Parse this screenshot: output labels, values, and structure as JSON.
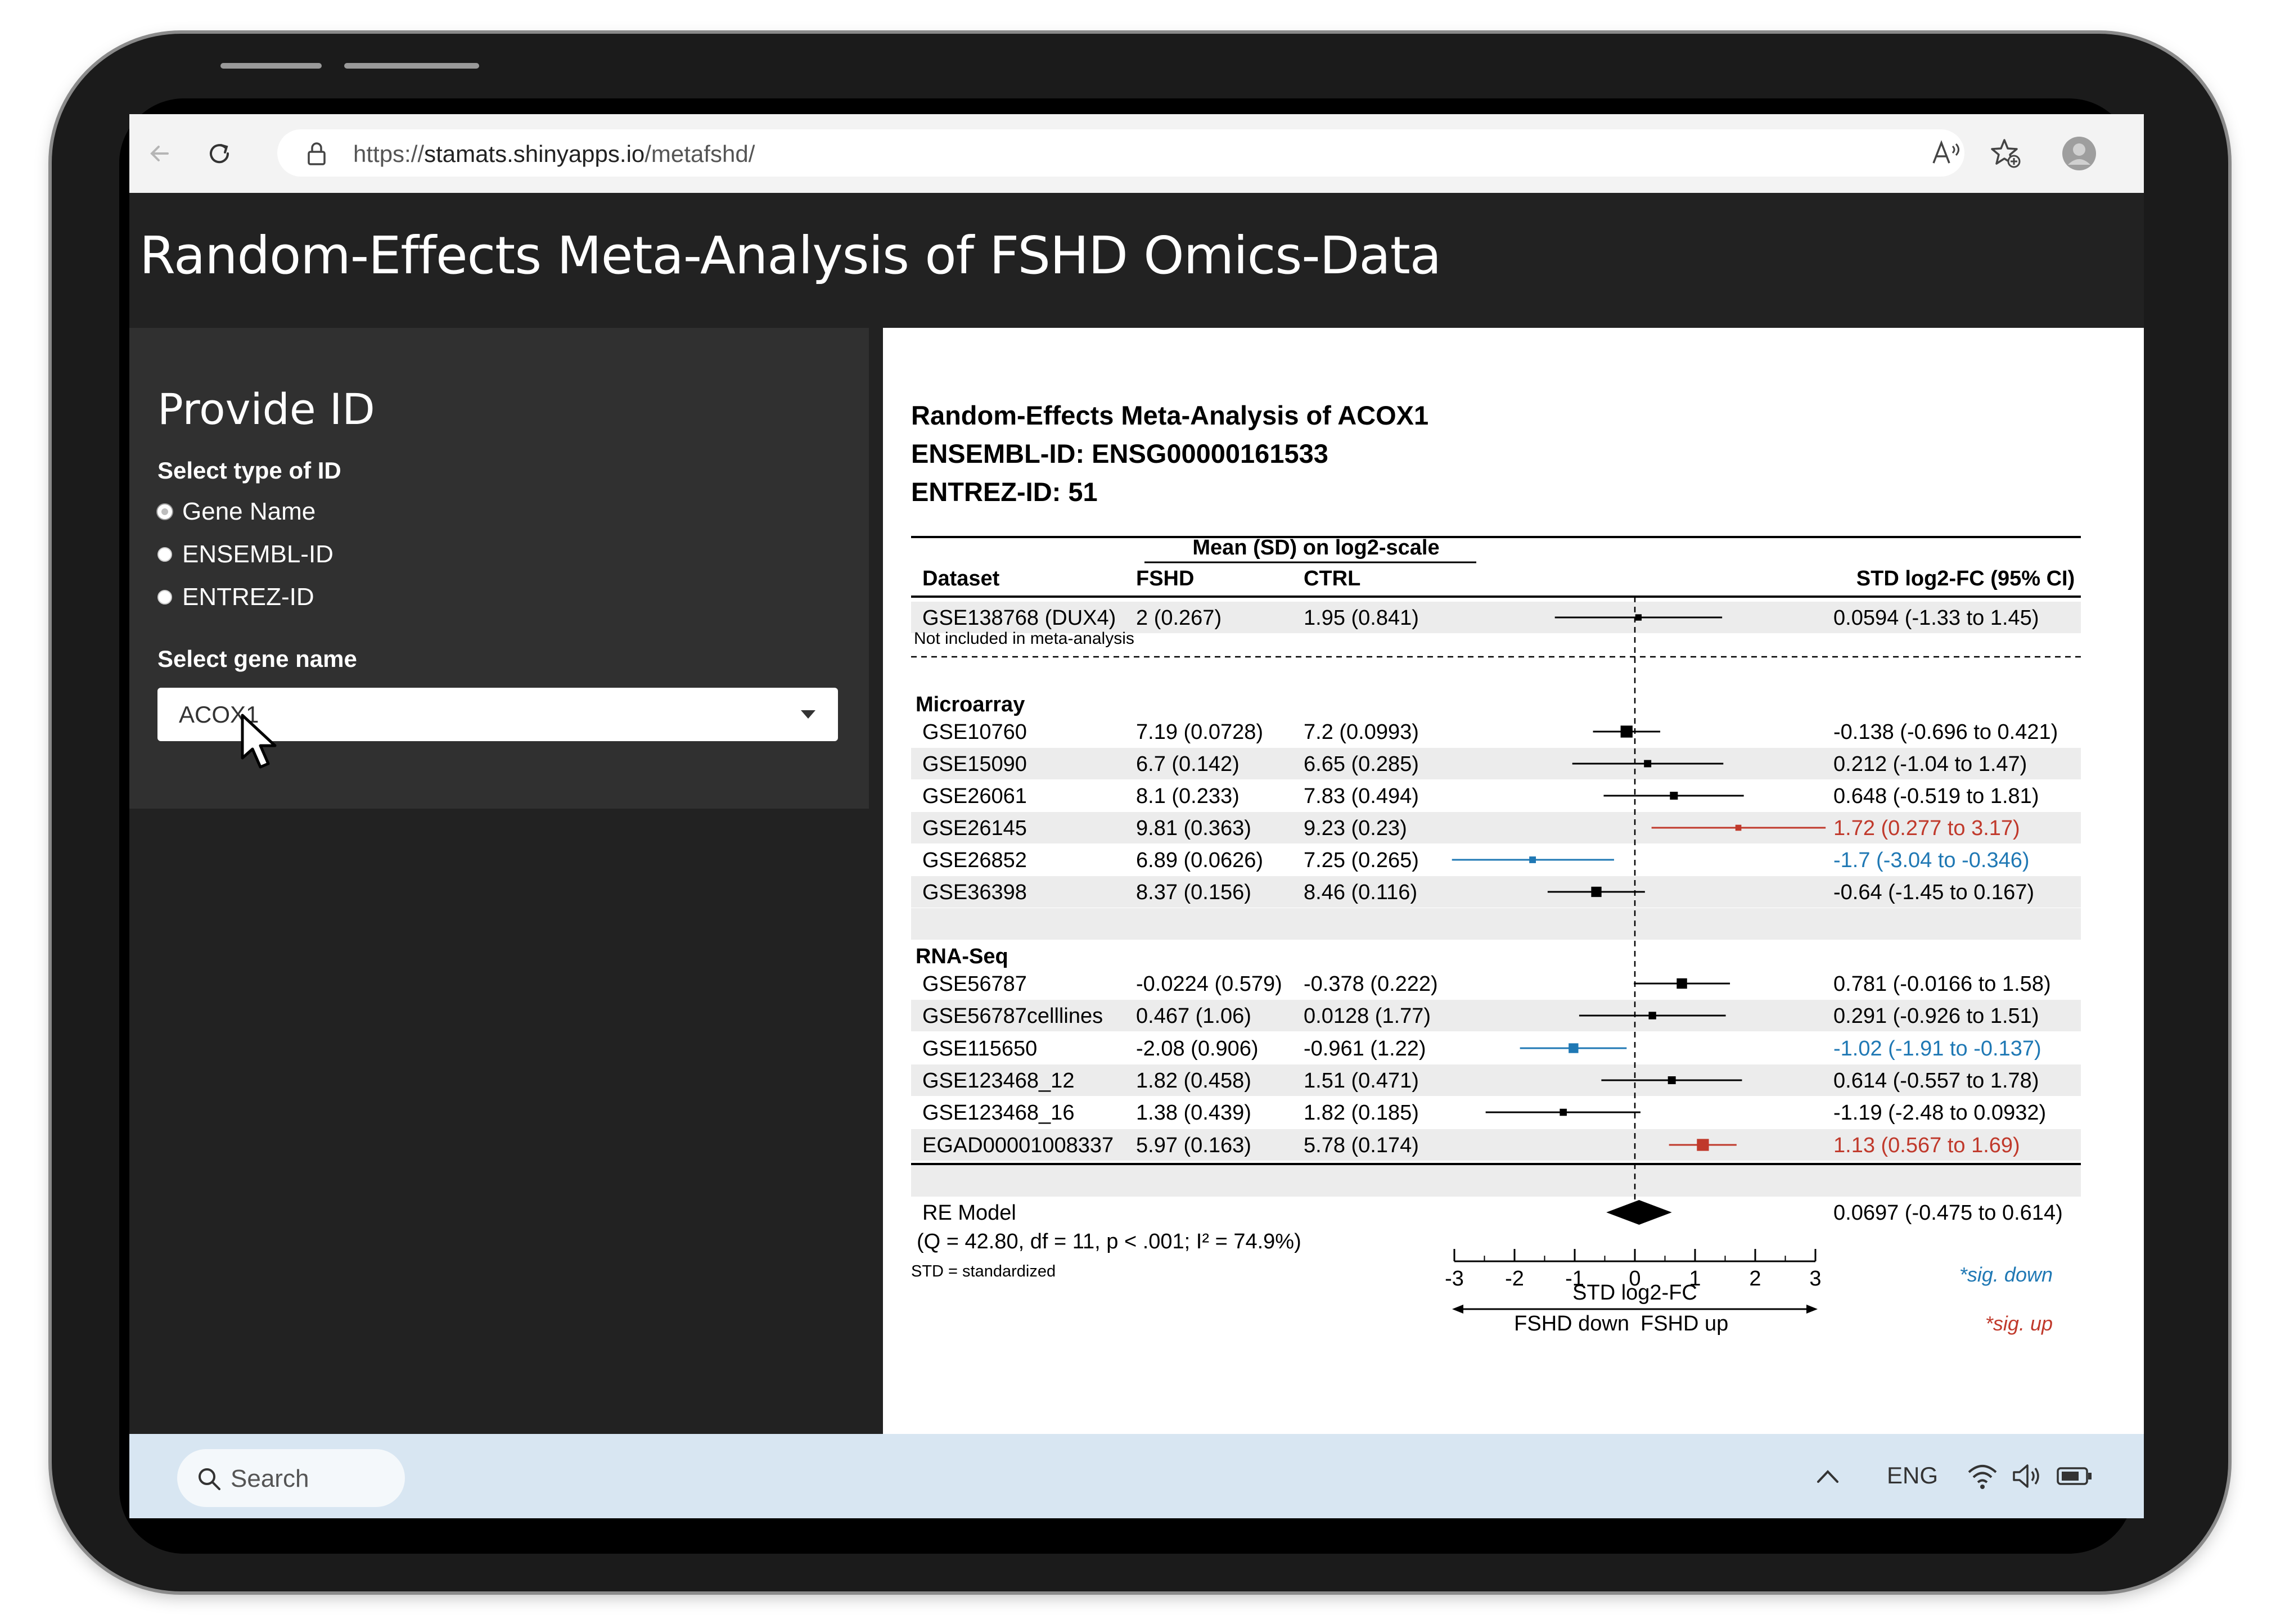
{
  "browser": {
    "url_prefix": "https://",
    "url_domain": "stamats.shinyapps.io",
    "url_path": "/metafshd/"
  },
  "app": {
    "title": "Random-Effects Meta-Analysis of FSHD Omics-Data"
  },
  "sidebar": {
    "heading": "Provide ID",
    "id_type_label": "Select type of ID",
    "id_types": [
      {
        "label": "Gene Name",
        "selected": true
      },
      {
        "label": "ENSEMBL-ID",
        "selected": false
      },
      {
        "label": "ENTREZ-ID",
        "selected": false
      }
    ],
    "gene_select_label": "Select gene name",
    "gene_selected": "ACOX1"
  },
  "forest": {
    "title_lines": [
      "Random-Effects Meta-Analysis of ACOX1",
      "ENSEMBL-ID: ENSG00000161533",
      "ENTREZ-ID: 51"
    ],
    "col_group_header": "Mean (SD) on log2-scale",
    "col_headers": {
      "dataset": "Dataset",
      "fshd": "FSHD",
      "ctrl": "CTRL",
      "effect": "STD log2-FC (95% CI)"
    },
    "excluded_note": "Not included in meta-analysis",
    "groups": [
      "Microarray",
      "RNA-Seq"
    ],
    "re_model_label": "RE Model",
    "heterogeneity": "(Q = 42.80, df = 11, p < .001; I² = 74.9%)",
    "footnote": "STD = standardized",
    "axis_label": "STD log2-FC",
    "direction_down": "FSHD down",
    "direction_up": "FSHD up",
    "legend_down": "*sig. down",
    "legend_up": "*sig. up"
  },
  "chart_data": {
    "type": "forest",
    "x_range": [
      -3,
      3
    ],
    "x_ticks": [
      -3,
      -2,
      -1,
      0,
      1,
      2,
      3
    ],
    "colors": {
      "normal": "#000000",
      "up": "#c0392b",
      "down": "#1f78b4"
    },
    "rows": [
      {
        "dataset": "GSE138768 (DUX4)",
        "fshd": "2 (0.267)",
        "ctrl": "1.95 (0.841)",
        "est": 0.0594,
        "lo": -1.33,
        "hi": 1.45,
        "ci_text": "0.0594 (-1.33 to 1.45)",
        "sig": "none",
        "group": "excluded"
      },
      {
        "dataset": "GSE10760",
        "fshd": "7.19 (0.0728)",
        "ctrl": "7.2 (0.0993)",
        "est": -0.138,
        "lo": -0.696,
        "hi": 0.421,
        "ci_text": "-0.138 (-0.696 to 0.421)",
        "sig": "none",
        "group": "Microarray"
      },
      {
        "dataset": "GSE15090",
        "fshd": "6.7 (0.142)",
        "ctrl": "6.65 (0.285)",
        "est": 0.212,
        "lo": -1.04,
        "hi": 1.47,
        "ci_text": "0.212 (-1.04 to 1.47)",
        "sig": "none",
        "group": "Microarray"
      },
      {
        "dataset": "GSE26061",
        "fshd": "8.1 (0.233)",
        "ctrl": "7.83 (0.494)",
        "est": 0.648,
        "lo": -0.519,
        "hi": 1.81,
        "ci_text": "0.648 (-0.519 to 1.81)",
        "sig": "none",
        "group": "Microarray"
      },
      {
        "dataset": "GSE26145",
        "fshd": "9.81 (0.363)",
        "ctrl": "9.23 (0.23)",
        "est": 1.72,
        "lo": 0.277,
        "hi": 3.17,
        "ci_text": "1.72 (0.277 to 3.17)",
        "sig": "up",
        "group": "Microarray"
      },
      {
        "dataset": "GSE26852",
        "fshd": "6.89 (0.0626)",
        "ctrl": "7.25 (0.265)",
        "est": -1.7,
        "lo": -3.04,
        "hi": -0.346,
        "ci_text": "-1.7 (-3.04 to -0.346)",
        "sig": "down",
        "group": "Microarray"
      },
      {
        "dataset": "GSE36398",
        "fshd": "8.37 (0.156)",
        "ctrl": "8.46 (0.116)",
        "est": -0.64,
        "lo": -1.45,
        "hi": 0.167,
        "ci_text": "-0.64 (-1.45 to 0.167)",
        "sig": "none",
        "group": "Microarray"
      },
      {
        "dataset": "GSE56787",
        "fshd": "-0.0224 (0.579)",
        "ctrl": "-0.378 (0.222)",
        "est": 0.781,
        "lo": -0.0166,
        "hi": 1.58,
        "ci_text": "0.781 (-0.0166 to 1.58)",
        "sig": "none",
        "group": "RNA-Seq"
      },
      {
        "dataset": "GSE56787celllines",
        "fshd": "0.467 (1.06)",
        "ctrl": "0.0128 (1.77)",
        "est": 0.291,
        "lo": -0.926,
        "hi": 1.51,
        "ci_text": "0.291 (-0.926 to 1.51)",
        "sig": "none",
        "group": "RNA-Seq"
      },
      {
        "dataset": "GSE115650",
        "fshd": "-2.08 (0.906)",
        "ctrl": "-0.961 (1.22)",
        "est": -1.02,
        "lo": -1.91,
        "hi": -0.137,
        "ci_text": "-1.02 (-1.91 to -0.137)",
        "sig": "down",
        "group": "RNA-Seq"
      },
      {
        "dataset": "GSE123468_12",
        "fshd": "1.82 (0.458)",
        "ctrl": "1.51 (0.471)",
        "est": 0.614,
        "lo": -0.557,
        "hi": 1.78,
        "ci_text": "0.614 (-0.557 to 1.78)",
        "sig": "none",
        "group": "RNA-Seq"
      },
      {
        "dataset": "GSE123468_16",
        "fshd": "1.38 (0.439)",
        "ctrl": "1.82 (0.185)",
        "est": -1.19,
        "lo": -2.48,
        "hi": 0.0932,
        "ci_text": "-1.19 (-2.48 to 0.0932)",
        "sig": "none",
        "group": "RNA-Seq"
      },
      {
        "dataset": "EGAD00001008337",
        "fshd": "5.97 (0.163)",
        "ctrl": "5.78 (0.174)",
        "est": 1.13,
        "lo": 0.567,
        "hi": 1.69,
        "ci_text": "1.13 (0.567 to 1.69)",
        "sig": "up",
        "group": "RNA-Seq"
      }
    ],
    "re_model": {
      "est": 0.0697,
      "lo": -0.475,
      "hi": 0.614,
      "ci_text": "0.0697 (-0.475 to 0.614)"
    }
  },
  "taskbar": {
    "search_label": "Search",
    "language": "ENG"
  }
}
